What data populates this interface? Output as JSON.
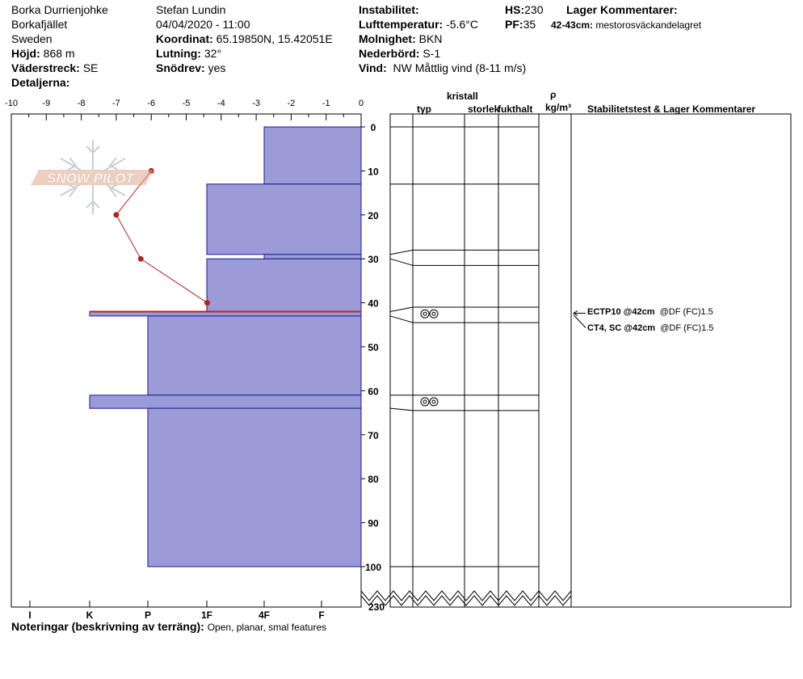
{
  "header": {
    "col1": {
      "location": "Borka Durrienjohke",
      "area": "Borkafjället",
      "country": "Sweden",
      "elevation_label": "Höjd:",
      "elevation": "868 m",
      "aspect_label": "Väderstreck:",
      "aspect": "SE",
      "details_label": "Detaljerna:"
    },
    "col2": {
      "observer": "Stefan Lundin",
      "datetime": "04/04/2020 - 11:00",
      "coord_label": "Koordinat:",
      "coord": "65.19850N, 15.42051E",
      "slope_label": "Lutning:",
      "slope": "32°",
      "wind_loading_label": "Snödrev:",
      "wind_loading": "yes"
    },
    "col3": {
      "instability_label": "Instabilitet:",
      "air_temp_label": "Lufttemperatur:",
      "air_temp": "-5.6°C",
      "sky_label": "Molnighet:",
      "sky": "BKN",
      "precip_label": "Nederbörd:",
      "precip": "S-1",
      "wind_label": "Vind:",
      "wind": "NW Måttlig vind (8-11 m/s)"
    },
    "col4": {
      "hs_label": "HS:",
      "hs": "230",
      "pf_label": "PF:",
      "pf": "35",
      "layer_comments_label": "Lager Kommentarer:",
      "layer_comment_depth": "42-43cm:",
      "layer_comment_text": "mestorosväckandelagret"
    }
  },
  "table_headers": {
    "crystal": "kristall",
    "type": "typ",
    "size": "storlek",
    "moisture": "fukthalt",
    "rho": "ρ",
    "rho_unit": "kg/m³",
    "stability": "Stabilitetstest & Lager Kommentarer"
  },
  "notes": {
    "label": "Noteringar (beskrivning av terräng):",
    "text": "Open, planar, smal features"
  },
  "logo": {
    "text": "SNOW PILOT"
  },
  "stability_tests": [
    {
      "name": "ECTP10 @42cm",
      "detail": "@DF (FC)1.5"
    },
    {
      "name": "CT4, SC @42cm",
      "detail": "@DF (FC)1.5"
    }
  ],
  "colors": {
    "hardness_fill": "#9b9bd7",
    "hardness_stroke": "#1a1a9a",
    "temp_line": "#b22222",
    "weak_layer": "#c0202a"
  },
  "chart_data": {
    "type": "snow-profile",
    "temp_axis": {
      "ticks": [
        "-10",
        "-9",
        "-8",
        "-7",
        "-6",
        "-5",
        "-4",
        "-3",
        "-2",
        "-1",
        "0"
      ],
      "range": [
        -10,
        0
      ]
    },
    "hardness_axis": {
      "ticks": [
        "I",
        "K",
        "P",
        "1F",
        "4F",
        "F"
      ]
    },
    "depth_axis": {
      "ticks": [
        "0",
        "10",
        "20",
        "30",
        "40",
        "50",
        "60",
        "70",
        "80",
        "90",
        "100"
      ],
      "bottom_label": "230",
      "range": [
        0,
        100
      ]
    },
    "temperature_profile": [
      {
        "depth": 10,
        "temp": -6.0
      },
      {
        "depth": 20,
        "temp": -7.0
      },
      {
        "depth": 30,
        "temp": -6.3
      },
      {
        "depth": 40,
        "temp": -4.4
      }
    ],
    "hardness_layers": [
      {
        "top": 0,
        "bottom": 13,
        "hardness": "4F-"
      },
      {
        "top": 13,
        "bottom": 29,
        "hardness": "1F+"
      },
      {
        "top": 29,
        "bottom": 30,
        "hardness": "4F-"
      },
      {
        "top": 30,
        "bottom": 42,
        "hardness": "1F+"
      },
      {
        "top": 42,
        "bottom": 43,
        "hardness": "K+"
      },
      {
        "top": 43,
        "bottom": 61,
        "hardness": "P"
      },
      {
        "top": 61,
        "bottom": 64,
        "hardness": "K+"
      },
      {
        "top": 64,
        "bottom": 100,
        "hardness": "P"
      }
    ],
    "crystal_layer_lines": [
      0,
      13,
      28,
      31.5,
      41,
      44.5,
      61,
      64.5,
      100
    ],
    "grain_types": [
      {
        "depth": 42.5,
        "symbol": "melt-form"
      },
      {
        "depth": 62.5,
        "symbol": "melt-form"
      }
    ]
  }
}
